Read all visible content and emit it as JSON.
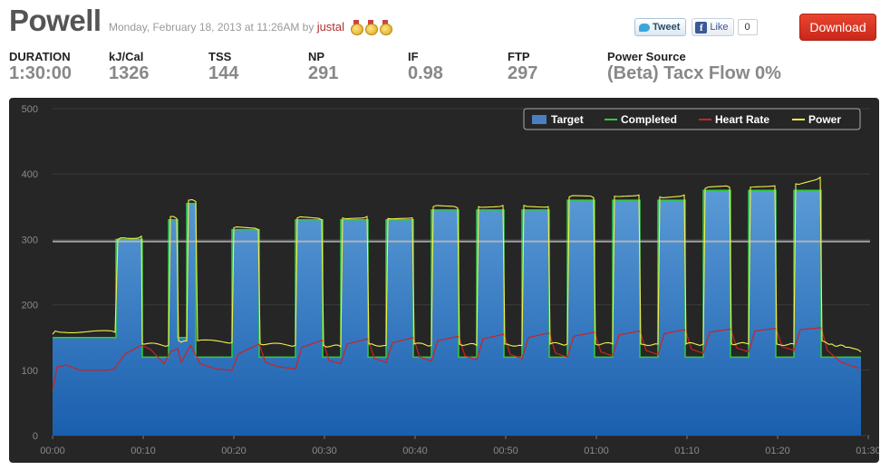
{
  "header": {
    "title": "Powell",
    "meta_prefix": "Monday, February 18, 2013 at 11:26AM by ",
    "user": "justal",
    "medals": [
      "medal-icon",
      "medal-icon",
      "medal-icon"
    ],
    "tweet_label": "Tweet",
    "like_label": "Like",
    "like_count": "0",
    "download_label": "Download"
  },
  "stats": [
    {
      "label": "DURATION",
      "value": "1:30:00"
    },
    {
      "label": "kJ/Cal",
      "value": "1326"
    },
    {
      "label": "TSS",
      "value": "144"
    },
    {
      "label": "NP",
      "value": "291"
    },
    {
      "label": "IF",
      "value": "0.98"
    },
    {
      "label": "FTP",
      "value": "297"
    },
    {
      "label": "Power Source",
      "value": "(Beta) Tacx Flow 0%"
    }
  ],
  "colors": {
    "chart_bg": "#262626",
    "target": "#4a7fc1",
    "completed": "#2ecc40",
    "heart_rate": "#cc2222",
    "power": "#f2f24a",
    "ftp_line": "#bbbbbb",
    "download": "#d6301f"
  },
  "chart_data": {
    "type": "area",
    "x_unit": "minutes",
    "xlim": [
      0,
      90
    ],
    "ylim": [
      0,
      500
    ],
    "y_ticks": [
      0,
      100,
      200,
      300,
      400,
      500
    ],
    "x_ticks": [
      "00:00",
      "00:10",
      "00:20",
      "00:30",
      "00:40",
      "00:50",
      "01:00",
      "01:10",
      "01:20",
      "01:30"
    ],
    "ftp_line": 297,
    "legend": [
      "Target",
      "Completed",
      "Heart Rate",
      "Power"
    ],
    "legend_position": "top-right",
    "grid": true,
    "series": [
      {
        "name": "Target",
        "steps": [
          [
            0,
            150
          ],
          [
            7,
            300
          ],
          [
            9.9,
            120
          ],
          [
            12.8,
            330
          ],
          [
            13.8,
            150
          ],
          [
            14.8,
            355
          ],
          [
            15.8,
            120
          ],
          [
            19.8,
            315
          ],
          [
            22.8,
            120
          ],
          [
            26.8,
            330
          ],
          [
            29.8,
            120
          ],
          [
            31.8,
            330
          ],
          [
            34.8,
            120
          ],
          [
            36.8,
            330
          ],
          [
            39.8,
            120
          ],
          [
            41.8,
            345
          ],
          [
            44.8,
            120
          ],
          [
            46.8,
            345
          ],
          [
            49.8,
            120
          ],
          [
            51.8,
            345
          ],
          [
            54.8,
            120
          ],
          [
            56.8,
            360
          ],
          [
            59.8,
            120
          ],
          [
            61.8,
            360
          ],
          [
            64.8,
            120
          ],
          [
            66.8,
            360
          ],
          [
            69.8,
            120
          ],
          [
            71.8,
            375
          ],
          [
            74.8,
            120
          ],
          [
            76.8,
            375
          ],
          [
            79.8,
            120
          ],
          [
            81.8,
            375
          ],
          [
            84.8,
            120
          ],
          [
            89.2,
            120
          ]
        ]
      },
      {
        "name": "Heart Rate",
        "points": [
          [
            0,
            70
          ],
          [
            0.5,
            105
          ],
          [
            1.5,
            108
          ],
          [
            3,
            100
          ],
          [
            6,
            100
          ],
          [
            6.8,
            102
          ],
          [
            8,
            125
          ],
          [
            9.8,
            138
          ],
          [
            10.8,
            132
          ],
          [
            12.3,
            110
          ],
          [
            13,
            128
          ],
          [
            13.8,
            133
          ],
          [
            14.2,
            112
          ],
          [
            15.2,
            138
          ],
          [
            16.3,
            110
          ],
          [
            18,
            102
          ],
          [
            19.8,
            100
          ],
          [
            20.5,
            125
          ],
          [
            22.8,
            140
          ],
          [
            23.5,
            112
          ],
          [
            25,
            105
          ],
          [
            26.8,
            102
          ],
          [
            27.5,
            135
          ],
          [
            29.8,
            146
          ],
          [
            30.5,
            115
          ],
          [
            31.8,
            110
          ],
          [
            32.5,
            140
          ],
          [
            34.8,
            148
          ],
          [
            35.5,
            118
          ],
          [
            36.8,
            112
          ],
          [
            37.5,
            142
          ],
          [
            39.8,
            150
          ],
          [
            40.5,
            120
          ],
          [
            41.8,
            114
          ],
          [
            42.5,
            145
          ],
          [
            44.8,
            152
          ],
          [
            45.5,
            122
          ],
          [
            46.8,
            116
          ],
          [
            47.5,
            148
          ],
          [
            49.8,
            155
          ],
          [
            50.5,
            124
          ],
          [
            51.8,
            118
          ],
          [
            52.5,
            150
          ],
          [
            54.8,
            157
          ],
          [
            55.5,
            126
          ],
          [
            56.8,
            120
          ],
          [
            57.5,
            152
          ],
          [
            59.8,
            158
          ],
          [
            60.5,
            128
          ],
          [
            61.8,
            122
          ],
          [
            62.5,
            154
          ],
          [
            64.8,
            160
          ],
          [
            65.5,
            130
          ],
          [
            66.8,
            124
          ],
          [
            67.5,
            156
          ],
          [
            69.8,
            162
          ],
          [
            70.5,
            132
          ],
          [
            71.8,
            126
          ],
          [
            72.5,
            158
          ],
          [
            74.8,
            163
          ],
          [
            75.5,
            134
          ],
          [
            76.8,
            128
          ],
          [
            77.5,
            160
          ],
          [
            79.8,
            164
          ],
          [
            80.5,
            136
          ],
          [
            81.8,
            130
          ],
          [
            82.5,
            162
          ],
          [
            84.8,
            165
          ],
          [
            85.5,
            130
          ],
          [
            87,
            112
          ],
          [
            89,
            103
          ]
        ]
      },
      {
        "name": "Power",
        "points": [
          [
            0,
            155
          ],
          [
            0.3,
            160
          ],
          [
            6.9,
            158
          ],
          [
            7.2,
            300
          ],
          [
            9.8,
            305
          ],
          [
            9.9,
            140
          ],
          [
            12.8,
            138
          ],
          [
            13,
            335
          ],
          [
            13.7,
            332
          ],
          [
            13.9,
            145
          ],
          [
            14.8,
            145
          ],
          [
            15,
            360
          ],
          [
            15.8,
            358
          ],
          [
            16,
            145
          ],
          [
            19.8,
            142
          ],
          [
            20,
            318
          ],
          [
            22.7,
            315
          ],
          [
            22.9,
            140
          ],
          [
            26.8,
            138
          ],
          [
            27,
            333
          ],
          [
            29.7,
            330
          ],
          [
            29.9,
            138
          ],
          [
            31.8,
            136
          ],
          [
            32,
            333
          ],
          [
            34.7,
            335
          ],
          [
            34.9,
            140
          ],
          [
            36.8,
            138
          ],
          [
            37,
            332
          ],
          [
            39.7,
            333
          ],
          [
            39.9,
            140
          ],
          [
            41.8,
            138
          ],
          [
            42,
            350
          ],
          [
            44.7,
            348
          ],
          [
            44.9,
            140
          ],
          [
            46.8,
            138
          ],
          [
            47,
            350
          ],
          [
            49.7,
            352
          ],
          [
            49.9,
            140
          ],
          [
            51.8,
            138
          ],
          [
            52,
            352
          ],
          [
            54.7,
            350
          ],
          [
            54.9,
            140
          ],
          [
            56.8,
            140
          ],
          [
            57,
            365
          ],
          [
            59.7,
            364
          ],
          [
            59.9,
            140
          ],
          [
            61.8,
            140
          ],
          [
            62,
            366
          ],
          [
            64.7,
            368
          ],
          [
            64.9,
            140
          ],
          [
            66.8,
            140
          ],
          [
            67,
            365
          ],
          [
            69.7,
            368
          ],
          [
            69.9,
            140
          ],
          [
            71.8,
            140
          ],
          [
            72,
            378
          ],
          [
            74.7,
            380
          ],
          [
            74.9,
            140
          ],
          [
            76.8,
            140
          ],
          [
            77,
            380
          ],
          [
            79.7,
            382
          ],
          [
            79.9,
            140
          ],
          [
            81.8,
            140
          ],
          [
            82,
            385
          ],
          [
            84.7,
            395
          ],
          [
            84.9,
            145
          ],
          [
            86,
            140
          ],
          [
            87.5,
            135
          ],
          [
            89.2,
            128
          ]
        ]
      }
    ]
  }
}
